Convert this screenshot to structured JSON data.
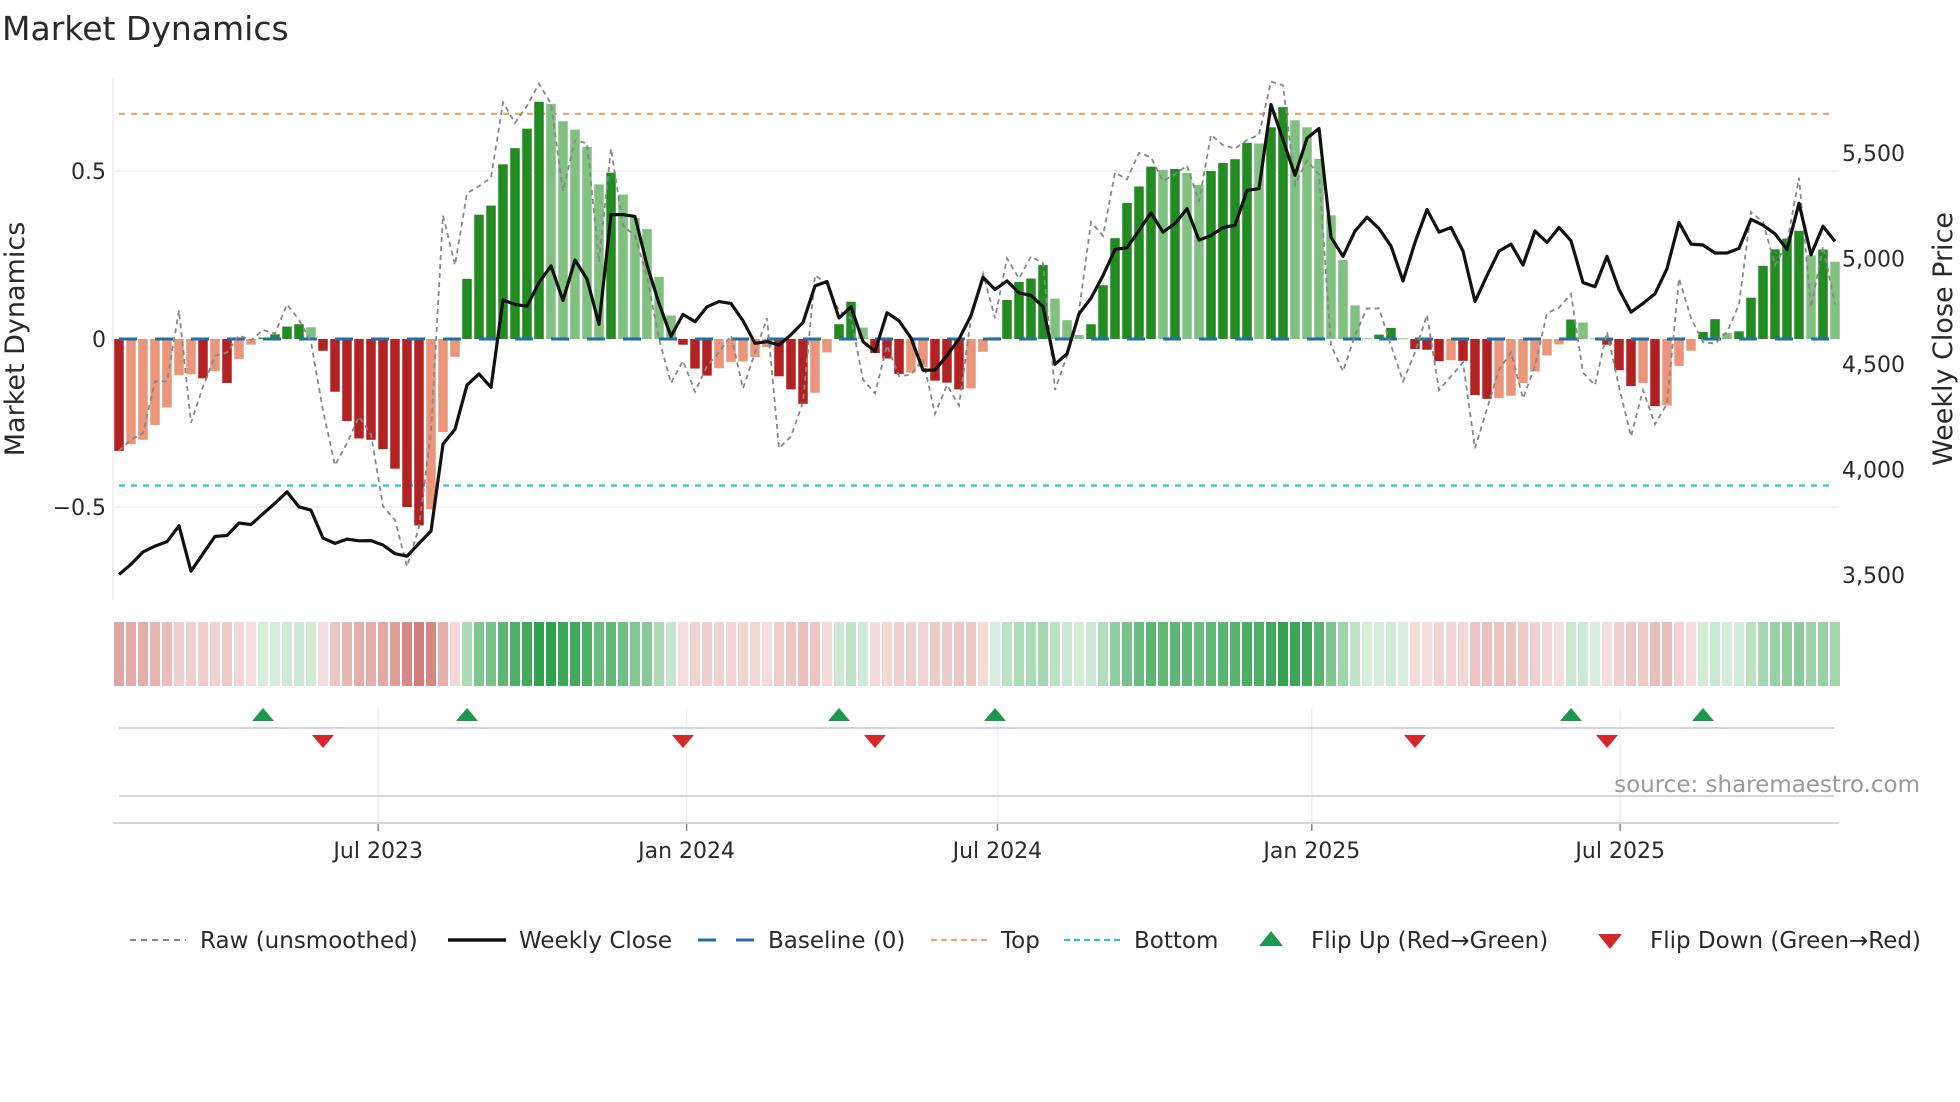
{
  "chart_data": {
    "type": "bar",
    "title": "Market Dynamics",
    "ylabel": "Market Dynamics",
    "y2label": "Weekly Close Price",
    "ylim": [
      -0.7,
      0.77
    ],
    "y2lim": [
      3420,
      5800
    ],
    "yticks": [
      {
        "value": 0.5,
        "label": "0.5"
      },
      {
        "value": 0,
        "label": "0"
      },
      {
        "value": -0.5,
        "label": "−0.5"
      }
    ],
    "y2ticks": [
      {
        "value": 5500,
        "label": "5,500"
      },
      {
        "value": 5000,
        "label": "5,000"
      },
      {
        "value": 4500,
        "label": "4,500"
      },
      {
        "value": 4000,
        "label": "4,000"
      },
      {
        "value": 3500,
        "label": "3,500"
      }
    ],
    "xticks": [
      {
        "week": 22.6,
        "label": "Jul 2023"
      },
      {
        "week": 48.3,
        "label": "Jan 2024"
      },
      {
        "week": 74.2,
        "label": "Jul 2024"
      },
      {
        "week": 100.4,
        "label": "Jan 2025"
      },
      {
        "week": 126.1,
        "label": "Jul 2025"
      }
    ],
    "levels": {
      "baseline": 0,
      "top": 0.67,
      "bottom": -0.436
    },
    "colors": {
      "green_dark": "#228b22",
      "green_light": "#80c080",
      "red_dark": "#b22222",
      "red_light": "#e9967a",
      "baseline": "#1f6fa8",
      "top": "#f0a868",
      "bottom": "#25c3dc",
      "raw": "#888888",
      "close": "#111111",
      "flip_up": "#1a9a4a",
      "flip_down": "#d62728"
    },
    "series": [
      {
        "name": "Market Dynamics (smoothed)",
        "type": "bar",
        "values": [
          -0.333,
          -0.313,
          -0.3,
          -0.256,
          -0.204,
          -0.108,
          -0.105,
          -0.117,
          -0.096,
          -0.131,
          -0.06,
          -0.017,
          0.004,
          0.014,
          0.037,
          0.044,
          0.035,
          -0.035,
          -0.157,
          -0.244,
          -0.296,
          -0.3,
          -0.328,
          -0.386,
          -0.5,
          -0.555,
          -0.507,
          -0.277,
          -0.053,
          0.179,
          0.37,
          0.397,
          0.52,
          0.568,
          0.626,
          0.706,
          0.7,
          0.648,
          0.623,
          0.572,
          0.46,
          0.495,
          0.43,
          0.36,
          0.327,
          0.185,
          0.07,
          -0.017,
          -0.088,
          -0.109,
          -0.087,
          -0.068,
          -0.067,
          -0.054,
          -0.024,
          -0.111,
          -0.15,
          -0.193,
          -0.16,
          -0.04,
          0.044,
          0.111,
          0.034,
          -0.042,
          -0.058,
          -0.104,
          -0.1,
          -0.083,
          -0.124,
          -0.13,
          -0.15,
          -0.147,
          -0.038,
          0.005,
          0.116,
          0.17,
          0.18,
          0.22,
          0.12,
          0.056,
          0.012,
          0.044,
          0.16,
          0.3,
          0.405,
          0.454,
          0.513,
          0.503,
          0.506,
          0.494,
          0.459,
          0.5,
          0.524,
          0.535,
          0.584,
          0.582,
          0.63,
          0.69,
          0.651,
          0.63,
          0.536,
          0.368,
          0.235,
          0.1,
          0.002,
          0.013,
          0.033,
          0.002,
          -0.03,
          -0.032,
          -0.066,
          -0.063,
          -0.065,
          -0.167,
          -0.178,
          -0.176,
          -0.169,
          -0.131,
          -0.097,
          -0.049,
          -0.016,
          0.058,
          0.049,
          0.002,
          -0.017,
          -0.093,
          -0.14,
          -0.131,
          -0.2,
          -0.198,
          -0.08,
          -0.035,
          0.021,
          0.059,
          0.018,
          0.023,
          0.123,
          0.218,
          0.267,
          0.299,
          0.322,
          0.249,
          0.266,
          0.23
        ]
      },
      {
        "name": "Raw (unsmoothed)",
        "type": "line",
        "values": [
          -0.333,
          -0.3,
          -0.28,
          -0.126,
          -0.126,
          0.085,
          -0.249,
          -0.142,
          -0.05,
          -0.04,
          0.011,
          -0.004,
          0.027,
          0.016,
          0.103,
          0.057,
          -0.009,
          -0.213,
          -0.376,
          -0.31,
          -0.231,
          -0.284,
          -0.498,
          -0.539,
          -0.677,
          -0.56,
          -0.274,
          0.368,
          0.22,
          0.434,
          0.455,
          0.48,
          0.704,
          0.643,
          0.694,
          0.76,
          0.7,
          0.44,
          0.592,
          0.582,
          0.23,
          0.567,
          0.337,
          0.307,
          0.185,
          0.001,
          -0.131,
          -0.065,
          -0.157,
          -0.08,
          -0.04,
          0.011,
          -0.147,
          -0.04,
          0.062,
          -0.325,
          -0.29,
          -0.188,
          0.19,
          0.164,
          0.083,
          0.062,
          -0.121,
          -0.162,
          -0.019,
          -0.111,
          -0.106,
          -0.06,
          -0.223,
          -0.137,
          -0.198,
          0.062,
          0.195,
          0.062,
          0.24,
          0.18,
          0.246,
          0.225,
          -0.152,
          -0.05,
          0.083,
          0.348,
          0.307,
          0.495,
          0.475,
          0.554,
          0.541,
          0.47,
          0.49,
          0.516,
          0.409,
          0.608,
          0.577,
          0.567,
          0.592,
          0.608,
          0.766,
          0.755,
          0.46,
          0.531,
          0.49,
          -0.019,
          -0.096,
          0.011,
          0.091,
          0.091,
          -0.019,
          -0.126,
          -0.04,
          0.072,
          -0.152,
          -0.111,
          -0.07,
          -0.325,
          -0.208,
          -0.091,
          -0.04,
          -0.177,
          -0.08,
          0.077,
          0.093,
          0.134,
          -0.1,
          -0.137,
          0.021,
          -0.142,
          -0.29,
          -0.152,
          -0.254,
          -0.193,
          0.18,
          0.062,
          -0.009,
          -0.014,
          0.021,
          0.103,
          0.378,
          0.348,
          0.22,
          0.286,
          0.48,
          0.093,
          0.276,
          0.103
        ]
      },
      {
        "name": "Weekly Close",
        "type": "line",
        "axis": "right",
        "values": [
          3502,
          3551,
          3609,
          3637,
          3658,
          3733,
          3518,
          3601,
          3683,
          3687,
          3746,
          3739,
          3790,
          3840,
          3894,
          3823,
          3807,
          3675,
          3650,
          3670,
          3662,
          3663,
          3642,
          3601,
          3589,
          3650,
          3708,
          4120,
          4191,
          4400,
          4453,
          4389,
          4804,
          4782,
          4774,
          4886,
          4965,
          4801,
          4993,
          4903,
          4688,
          5208,
          5208,
          5199,
          4969,
          4787,
          4631,
          4735,
          4700,
          4771,
          4796,
          4787,
          4705,
          4598,
          4606,
          4590,
          4639,
          4697,
          4870,
          4891,
          4718,
          4771,
          4606,
          4560,
          4743,
          4705,
          4623,
          4471,
          4471,
          4540,
          4618,
          4730,
          4911,
          4853,
          4894,
          4837,
          4825,
          4771,
          4499,
          4548,
          4738,
          4812,
          4919,
          5043,
          5051,
          5133,
          5216,
          5125,
          5166,
          5236,
          5087,
          5109,
          5147,
          5158,
          5323,
          5331,
          5730,
          5562,
          5394,
          5570,
          5616,
          5100,
          5010,
          5130,
          5196,
          5142,
          5059,
          4894,
          5076,
          5232,
          5125,
          5147,
          5035,
          4796,
          4919,
          5035,
          5068,
          4969,
          5130,
          5076,
          5147,
          5084,
          4886,
          4866,
          5010,
          4853,
          4746,
          4787,
          4833,
          4952,
          5171,
          5068,
          5064,
          5026,
          5026,
          5048,
          5186,
          5158,
          5117,
          5043,
          5262,
          5018,
          5153,
          5081
        ]
      }
    ],
    "flips": {
      "up": [
        13,
        30,
        61,
        74,
        122,
        133
      ],
      "down": [
        18,
        48,
        64,
        109,
        125
      ]
    },
    "legend": {
      "placement": "bottom",
      "items": [
        {
          "key": "raw",
          "label": "Raw (unsmoothed)"
        },
        {
          "key": "close",
          "label": "Weekly Close"
        },
        {
          "key": "baseline",
          "label": "Baseline (0)"
        },
        {
          "key": "top",
          "label": "Top"
        },
        {
          "key": "bottom",
          "label": "Bottom"
        },
        {
          "key": "up",
          "label": "Flip Up (Red→Green)"
        },
        {
          "key": "down",
          "label": "Flip Down (Green→Red)"
        }
      ]
    },
    "source": "source: sharemaestro.com"
  }
}
